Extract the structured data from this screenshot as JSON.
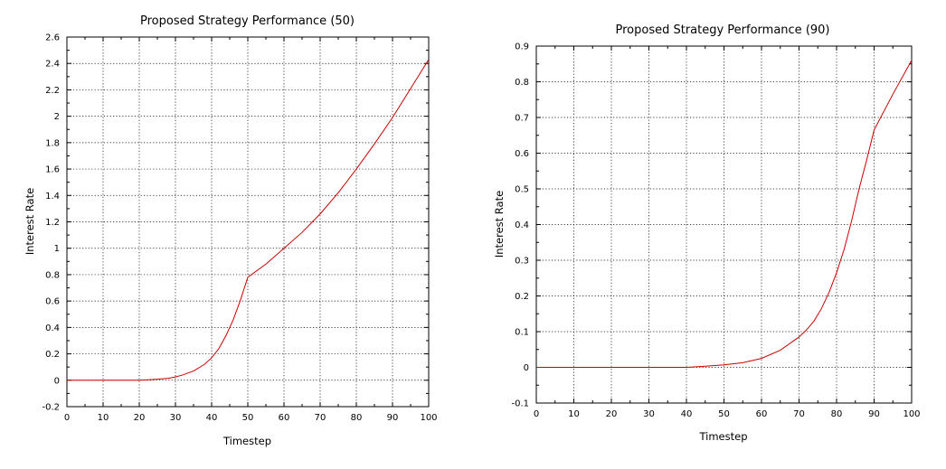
{
  "chart_data": [
    {
      "type": "line",
      "title": "Proposed Strategy Performance (50)",
      "xlabel": "Timestep",
      "ylabel": "Interest Rate",
      "xlim": [
        0,
        100
      ],
      "ylim": [
        -0.2,
        2.6
      ],
      "xticks": [
        "0",
        "10",
        "20",
        "30",
        "40",
        "50",
        "60",
        "70",
        "80",
        "90",
        "100"
      ],
      "yticks": [
        "-0.2",
        "0",
        "0.2",
        "0.4",
        "0.6",
        "0.8",
        "1",
        "1.2",
        "1.4",
        "1.6",
        "1.8",
        "2",
        "2.2",
        "2.4",
        "2.6"
      ],
      "grid": true,
      "series_color": "#cc0000",
      "x": [
        0,
        5,
        10,
        15,
        20,
        22,
        25,
        28,
        30,
        32,
        35,
        38,
        40,
        42,
        44,
        46,
        48,
        50,
        55,
        60,
        65,
        70,
        75,
        80,
        85,
        90,
        95,
        100
      ],
      "y": [
        0,
        0,
        0,
        0,
        0,
        0.003,
        0.008,
        0.015,
        0.025,
        0.04,
        0.07,
        0.12,
        0.17,
        0.24,
        0.34,
        0.46,
        0.61,
        0.78,
        0.88,
        1.0,
        1.12,
        1.26,
        1.42,
        1.6,
        1.79,
        1.99,
        2.21,
        2.43
      ]
    },
    {
      "type": "line",
      "title": "Proposed Strategy Performance (90)",
      "xlabel": "Timestep",
      "ylabel": "Interest Rate",
      "xlim": [
        0,
        100
      ],
      "ylim": [
        -0.1,
        0.9
      ],
      "xticks": [
        "0",
        "10",
        "20",
        "30",
        "40",
        "50",
        "60",
        "70",
        "80",
        "90",
        "100"
      ],
      "yticks": [
        "-0.1",
        "0",
        "0.1",
        "0.2",
        "0.3",
        "0.4",
        "0.5",
        "0.6",
        "0.7",
        "0.8",
        "0.9"
      ],
      "grid": true,
      "series_color": "#cc0000",
      "x": [
        0,
        10,
        20,
        30,
        40,
        45,
        50,
        55,
        60,
        65,
        70,
        72,
        74,
        76,
        78,
        80,
        82,
        84,
        86,
        88,
        90,
        95,
        100
      ],
      "y": [
        0,
        0,
        0,
        0,
        0,
        0.003,
        0.007,
        0.013,
        0.025,
        0.048,
        0.085,
        0.105,
        0.13,
        0.165,
        0.21,
        0.265,
        0.33,
        0.41,
        0.5,
        0.58,
        0.665,
        0.765,
        0.86
      ]
    }
  ]
}
